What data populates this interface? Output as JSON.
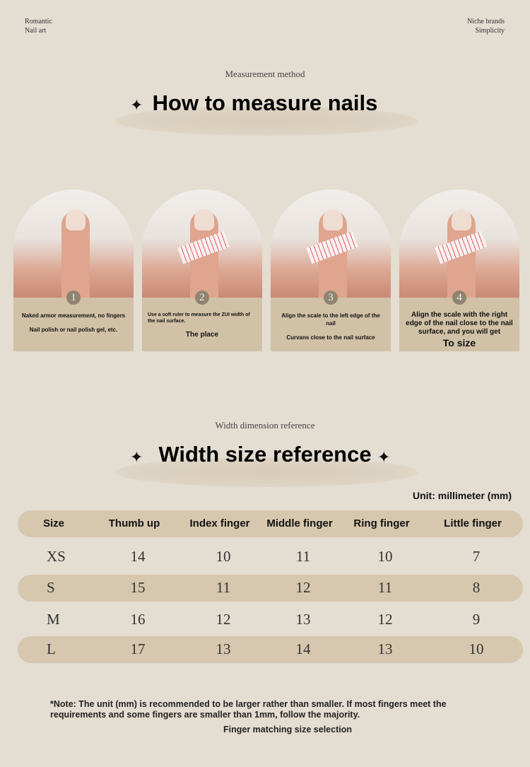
{
  "header": {
    "left": [
      "Romantic",
      "Nail art"
    ],
    "right": [
      "Niche brands",
      "Simplicity"
    ]
  },
  "section1": {
    "subtitle": "Measurement method",
    "title": "How to measure nails"
  },
  "steps": [
    {
      "number": "1",
      "lines": [
        "Naked armor measurement, no fingers",
        "Nail polish or nail polish gel, etc."
      ],
      "emphasis": ""
    },
    {
      "number": "2",
      "lines": [
        "Use a soft ruler to measure the ZUI width of the nail surface."
      ],
      "emphasis": "The place"
    },
    {
      "number": "3",
      "lines": [
        "Align the scale to the left edge of the nail",
        "Curvans close to the nail surface"
      ],
      "emphasis": ""
    },
    {
      "number": "4",
      "lines": [
        "Align the scale with the right edge of the nail close to the nail surface, and you will get"
      ],
      "emphasis": "To size"
    }
  ],
  "section2": {
    "subtitle": "Width dimension reference",
    "title": "Width size reference",
    "unit": "Unit: millimeter (mm)"
  },
  "table": {
    "headers": [
      "Size",
      "Thumb up",
      "Index finger",
      "Middle finger",
      "Ring finger",
      "Little finger"
    ],
    "rows": [
      [
        "XS",
        "14",
        "10",
        "11",
        "10",
        "7"
      ],
      [
        "S",
        "15",
        "11",
        "12",
        "11",
        "8"
      ],
      [
        "M",
        "16",
        "12",
        "13",
        "12",
        "9"
      ],
      [
        "L",
        "17",
        "13",
        "14",
        "13",
        "10"
      ]
    ]
  },
  "note": {
    "text": "*Note: The unit (mm) is recommended to be larger rather than smaller. If most fingers meet the requirements and some fingers are smaller than 1mm, follow the majority.",
    "footer": "Finger matching size selection"
  },
  "colors": {
    "background": "#e4ddd1",
    "accent": "#d1c1a6",
    "badge": "#8f8470"
  }
}
